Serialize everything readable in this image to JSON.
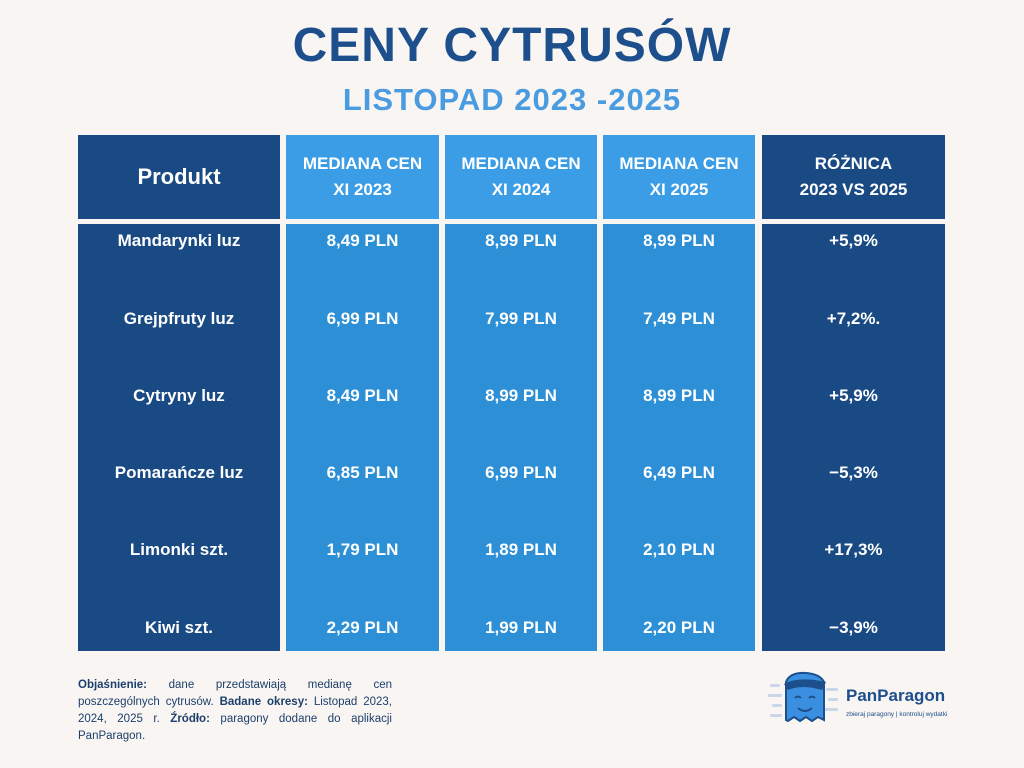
{
  "header": {
    "title": "CENY CYTRUSÓW",
    "subtitle": "LISTOPAD 2023 -2025"
  },
  "table": {
    "columns": [
      [
        "Produkt"
      ],
      [
        "MEDIANA CEN",
        "XI 2023"
      ],
      [
        "MEDIANA CEN",
        "XI 2024"
      ],
      [
        "MEDIANA CEN",
        "XI 2025"
      ],
      [
        "RÓŻNICA",
        "2023 VS 2025"
      ]
    ],
    "rows": [
      [
        "Mandarynki luz",
        "8,49 PLN",
        "8,99 PLN",
        "8,99 PLN",
        "+5,9%"
      ],
      [
        "Grejpfruty luz",
        "6,99 PLN",
        "7,99 PLN",
        "7,49 PLN",
        "+7,2%."
      ],
      [
        "Cytryny luz",
        "8,49 PLN",
        "8,99 PLN",
        "8,99 PLN",
        "+5,9%"
      ],
      [
        "Pomarańcze luz",
        "6,85 PLN",
        "6,99 PLN",
        "6,49 PLN",
        "−5,3%"
      ],
      [
        "Limonki szt.",
        "1,79 PLN",
        "1,89 PLN",
        "2,10 PLN",
        "+17,3%"
      ],
      [
        "Kiwi szt.",
        "2,29 PLN",
        "1,99 PLN",
        "2,20 PLN",
        "−3,9%"
      ]
    ]
  },
  "footnote": [
    {
      "label": "Objaśnienie:",
      "text": "dane przedstawiają medianę cen poszczególnych cytrusów."
    },
    {
      "label": "Badane okresy:",
      "text": "Listopad 2023, 2024, 2025 r."
    },
    {
      "label": "Źródło:",
      "text": "paragony dodane do aplikacji PanParagon."
    }
  ],
  "logo": {
    "brand": "PanParagon",
    "tagline": "zbieraj paragony | kontroluj wydatki"
  }
}
